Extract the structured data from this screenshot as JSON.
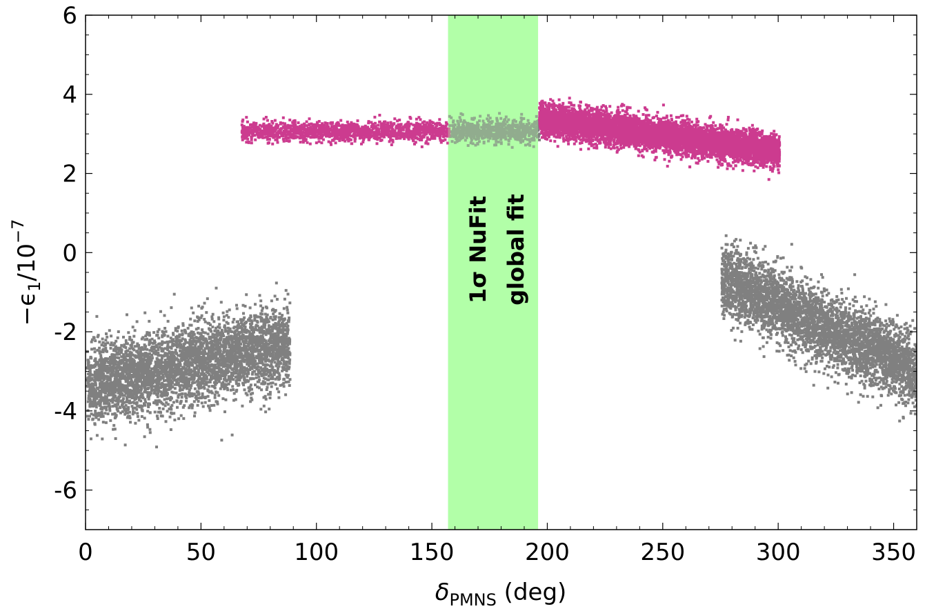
{
  "chart_data": {
    "type": "scatter",
    "title": "",
    "xlabel": {
      "symbol": "δ",
      "subscript": "PMNS",
      "unit": " (deg)"
    },
    "ylabel": {
      "prefix": "−ϵ",
      "subscript": "1",
      "middle": "/10",
      "superscript": "−7"
    },
    "xlim": [
      0,
      360
    ],
    "ylim": [
      -7,
      6
    ],
    "x_ticks": [
      0,
      50,
      100,
      150,
      200,
      250,
      300,
      350
    ],
    "x_tick_labels": [
      "0",
      "50",
      "100",
      "150",
      "200",
      "250",
      "300",
      "350"
    ],
    "y_ticks": [
      -6,
      -4,
      -2,
      0,
      2,
      4,
      6
    ],
    "y_tick_labels": [
      "-6",
      "-4",
      "-2",
      "0",
      "2",
      "4",
      "6"
    ],
    "grid": false,
    "band": {
      "x_range": [
        157,
        196
      ],
      "color": "#b3ffa8",
      "label_line1": "1σ NuFit",
      "label_line2": "global fit"
    },
    "series": [
      {
        "color": "#808080",
        "clusters": [
          {
            "x_range": [
              0,
              88
            ],
            "y_center": -2.8,
            "y_spread": 1.1,
            "slope": 0.012,
            "density": 4200
          },
          {
            "x_range": [
              275,
              360
            ],
            "y_center": -1.8,
            "y_spread": 1.0,
            "slope": -0.028,
            "density": 4200
          },
          {
            "x_range": [
              157,
              196
            ],
            "y_center": 3.1,
            "y_spread": 0.3,
            "slope": 0.0,
            "density": 700
          }
        ]
      },
      {
        "color": "#cc3b8f",
        "clusters": [
          {
            "x_range": [
              67,
              157
            ],
            "y_center": 3.1,
            "y_spread": 0.28,
            "slope": 0.0,
            "density": 1400
          },
          {
            "x_range": [
              196,
              300
            ],
            "y_center": 3.0,
            "y_spread": 0.45,
            "slope": -0.008,
            "density": 6500
          }
        ]
      }
    ]
  }
}
